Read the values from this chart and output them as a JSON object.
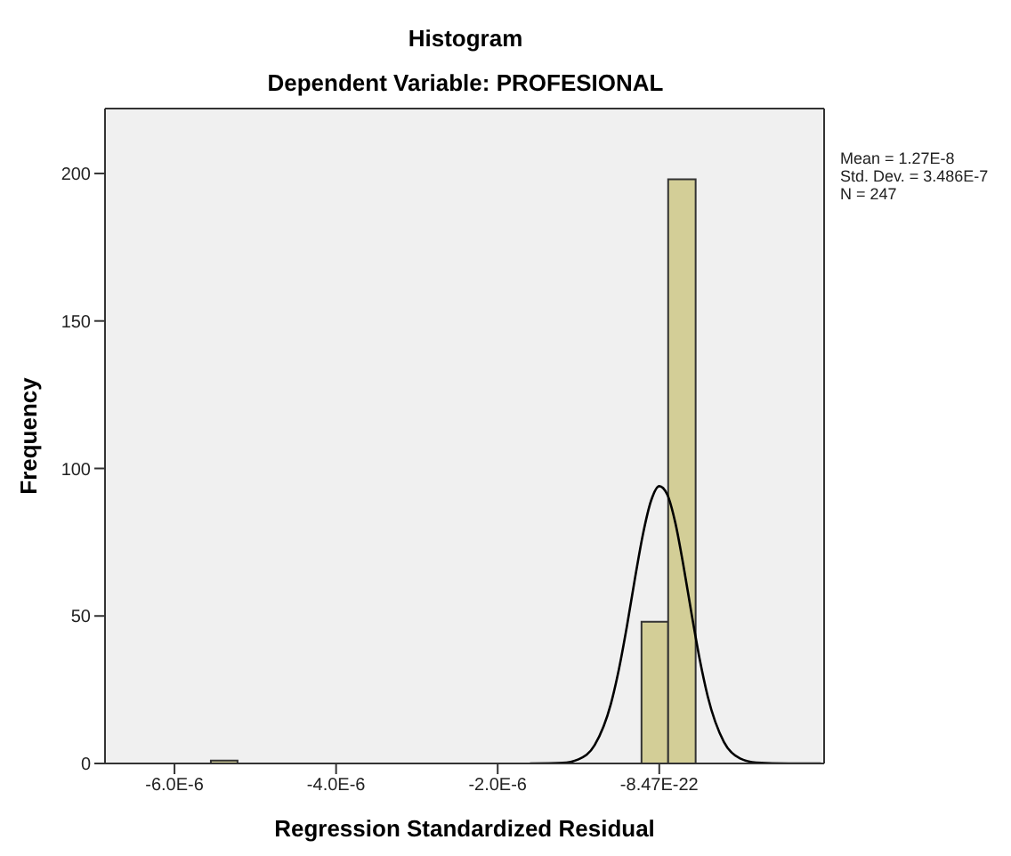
{
  "chart_data": {
    "type": "histogram",
    "title": "Histogram",
    "subtitle": "Dependent Variable: PROFESIONAL",
    "xlabel": "Regression Standardized Residual",
    "ylabel": "Frequency",
    "bins": [
      -5.55e-06,
      -5.22e-06,
      -2.2e-07,
      1.1e-07,
      4.5e-07
    ],
    "values": [
      1,
      0,
      48,
      198
    ],
    "color": "#d3ce97",
    "series": [
      {
        "type": "line",
        "color": "#000000",
        "x": [
          -1.6e-06,
          -1.2e-06,
          -1e-06,
          -8e-07,
          -6e-07,
          -5e-07,
          -4e-07,
          -3e-07,
          -2e-07,
          -1e-07,
          0,
          1e-07,
          2e-07,
          3e-07,
          4e-07,
          5e-07,
          6e-07,
          8e-07,
          1e-06,
          1.2e-06,
          1.6e-06,
          2e-06
        ],
        "values": [
          0,
          0.2,
          1.4,
          6.2,
          20.1,
          31.9,
          46.6,
          62.9,
          78.0,
          89.2,
          94,
          91.1,
          81.4,
          66.9,
          50.7,
          35.4,
          22.7,
          7.3,
          1.7,
          0.3,
          0,
          0
        ]
      }
    ],
    "xlim": [
      -6.86e-06,
      2.04e-06
    ],
    "xticks": [
      {
        "value": -6e-06,
        "label": "-6.0E-6"
      },
      {
        "value": -4e-06,
        "label": "-4.0E-6"
      },
      {
        "value": -2e-06,
        "label": "-2.0E-6"
      },
      {
        "value": -8.47e-22,
        "label": "-8.47E-22"
      }
    ],
    "ylim": [
      0,
      222
    ],
    "yticks": [
      0,
      50,
      100,
      150,
      200
    ],
    "annotations": [
      "Mean = 1.27E-8",
      "Std. Dev. = 3.486E-7",
      "N = 247"
    ],
    "grid": false,
    "legend": false,
    "marker": "none",
    "line_style": "solid"
  }
}
